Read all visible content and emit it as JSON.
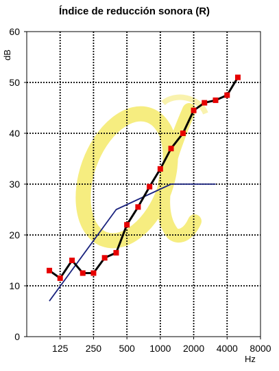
{
  "chart_data": {
    "type": "line",
    "title": "Índice de reducción sonora (R)",
    "ylabel": "dB",
    "xlabel": "Hz",
    "ylim": [
      0,
      60
    ],
    "y_ticks": [
      0,
      10,
      20,
      30,
      40,
      50,
      60
    ],
    "x_scale": "log",
    "xlim": [
      62.5,
      8000
    ],
    "x_ticks": [
      125,
      250,
      500,
      1000,
      2000,
      4000,
      8000
    ],
    "grid": true,
    "grid_style": "dotted",
    "watermark_color": "#f5ea6a",
    "series": [
      {
        "color": "#000000",
        "marker": "square",
        "marker_color": "#e60000",
        "x": [
          100,
          125,
          160,
          200,
          250,
          315,
          400,
          500,
          630,
          800,
          1000,
          1250,
          1600,
          2000,
          2500,
          3150,
          4000,
          5000
        ],
        "values": [
          13,
          11.5,
          15,
          12.5,
          12.5,
          15.5,
          16.5,
          22,
          25.5,
          29.5,
          33,
          37,
          40,
          44.5,
          46,
          46.5,
          47.5,
          51
        ]
      },
      {
        "color": "#1a237e",
        "marker": "none",
        "x": [
          100,
          400,
          1250,
          3150
        ],
        "values": [
          7,
          25,
          30,
          30
        ]
      }
    ]
  }
}
